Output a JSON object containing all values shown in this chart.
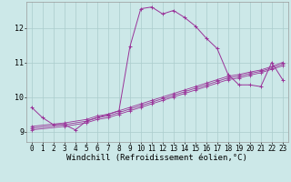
{
  "title": "",
  "xlabel": "Windchill (Refroidissement éolien,°C)",
  "ylabel": "",
  "bg_color": "#cce8e8",
  "line_color": "#993399",
  "grid_color": "#aacccc",
  "xlim": [
    -0.5,
    23.5
  ],
  "ylim": [
    8.7,
    12.75
  ],
  "yticks": [
    9,
    10,
    11,
    12
  ],
  "xticks": [
    0,
    1,
    2,
    3,
    4,
    5,
    6,
    7,
    8,
    9,
    10,
    11,
    12,
    13,
    14,
    15,
    16,
    17,
    18,
    19,
    20,
    21,
    22,
    23
  ],
  "series1_x": [
    0,
    1,
    2,
    3,
    4,
    5,
    6,
    7,
    8,
    9,
    10,
    11,
    12,
    13,
    14,
    15,
    16,
    17,
    18,
    19,
    20,
    21,
    22,
    23
  ],
  "series1_y": [
    9.7,
    9.4,
    9.2,
    9.2,
    9.05,
    9.3,
    9.4,
    9.5,
    9.6,
    11.45,
    12.55,
    12.6,
    12.4,
    12.5,
    12.3,
    12.05,
    11.7,
    11.4,
    10.65,
    10.35,
    10.35,
    10.3,
    11.0,
    10.5
  ],
  "series2_x": [
    0,
    3,
    5,
    6,
    7,
    8,
    9,
    10,
    11,
    12,
    13,
    14,
    15,
    16,
    17,
    18,
    19,
    20,
    21,
    22,
    23
  ],
  "series2_y": [
    9.15,
    9.25,
    9.35,
    9.45,
    9.5,
    9.6,
    9.7,
    9.8,
    9.9,
    10.0,
    10.1,
    10.2,
    10.3,
    10.4,
    10.5,
    10.6,
    10.65,
    10.72,
    10.78,
    10.88,
    11.0
  ],
  "series3_x": [
    0,
    3,
    5,
    6,
    7,
    8,
    9,
    10,
    11,
    12,
    13,
    14,
    15,
    16,
    17,
    18,
    19,
    20,
    21,
    22,
    23
  ],
  "series3_y": [
    9.1,
    9.2,
    9.3,
    9.4,
    9.45,
    9.55,
    9.65,
    9.75,
    9.85,
    9.95,
    10.05,
    10.15,
    10.25,
    10.35,
    10.45,
    10.55,
    10.6,
    10.68,
    10.74,
    10.84,
    10.95
  ],
  "series4_x": [
    0,
    3,
    5,
    6,
    7,
    8,
    9,
    10,
    11,
    12,
    13,
    14,
    15,
    16,
    17,
    18,
    19,
    20,
    21,
    22,
    23
  ],
  "series4_y": [
    9.05,
    9.15,
    9.25,
    9.35,
    9.4,
    9.5,
    9.6,
    9.7,
    9.8,
    9.9,
    10.0,
    10.1,
    10.2,
    10.3,
    10.4,
    10.5,
    10.55,
    10.63,
    10.7,
    10.8,
    10.9
  ],
  "tick_fontsize": 5.5,
  "xlabel_fontsize": 6.5,
  "figwidth": 3.2,
  "figheight": 2.0,
  "dpi": 100
}
